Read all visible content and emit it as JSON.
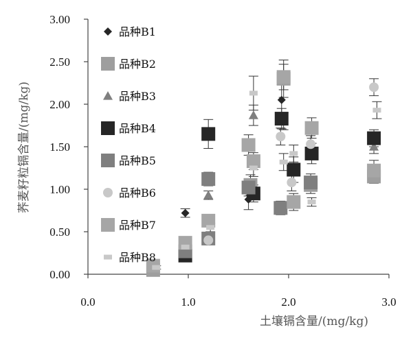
{
  "chart_data": {
    "type": "scatter",
    "xlabel": "土壤镉含量/(mg/kg)",
    "ylabel": "荞麦籽粒镉含量/(mg/kg)",
    "xlim": [
      0,
      3
    ],
    "ylim": [
      0,
      3
    ],
    "x_ticks": [
      "0.0",
      "1.0",
      "2.0",
      "3.0"
    ],
    "y_ticks": [
      "0.00",
      "0.50",
      "1.00",
      "1.50",
      "2.00",
      "2.50",
      "3.00"
    ],
    "grid": false,
    "legend_position": "top-left",
    "error_bars": true,
    "series": [
      {
        "name": "品种B1",
        "marker": "diamond",
        "color": "#262626",
        "points": [
          [
            0.97,
            0.72,
            0.05
          ],
          [
            1.6,
            0.88,
            0.12
          ],
          [
            1.93,
            2.05,
            0.18
          ]
        ]
      },
      {
        "name": "品种B2",
        "marker": "square",
        "color": "#9e9e9e",
        "points": [
          [
            0.65,
            0.05,
            0.03
          ],
          [
            1.62,
            1.05,
            0.12
          ],
          [
            1.95,
            2.3,
            0.22
          ],
          [
            2.22,
            1.05,
            0.1
          ],
          [
            2.85,
            1.15,
            0.08
          ]
        ]
      },
      {
        "name": "品种B3",
        "marker": "triangle",
        "color": "#7f7f7f",
        "points": [
          [
            1.2,
            0.93,
            0.05
          ],
          [
            1.65,
            1.87,
            0.12
          ],
          [
            1.95,
            1.8,
            0.1
          ],
          [
            2.85,
            1.5,
            0.08
          ]
        ]
      },
      {
        "name": "品种B4",
        "marker": "square",
        "color": "#262626",
        "points": [
          [
            0.97,
            0.22,
            0.03
          ],
          [
            1.2,
            1.65,
            0.17
          ],
          [
            1.65,
            0.95,
            0.1
          ],
          [
            1.93,
            1.83,
            0.12
          ],
          [
            2.05,
            1.23,
            0.15
          ],
          [
            2.23,
            1.42,
            0.12
          ],
          [
            2.85,
            1.6,
            0.1
          ]
        ]
      },
      {
        "name": "品种B5",
        "marker": "square",
        "color": "#7f7f7f",
        "points": [
          [
            0.97,
            0.27,
            0.03
          ],
          [
            1.2,
            0.42,
            0.07
          ],
          [
            1.2,
            1.12,
            0.08
          ],
          [
            1.6,
            1.02,
            0.1
          ],
          [
            1.92,
            0.78,
            0.08
          ],
          [
            2.22,
            1.08,
            0.1
          ]
        ]
      },
      {
        "name": "品种B6",
        "marker": "circle",
        "color": "#c8c8c8",
        "points": [
          [
            1.2,
            0.4,
            0.05
          ],
          [
            1.92,
            1.62,
            0.1
          ],
          [
            2.03,
            1.08,
            0.1
          ],
          [
            2.22,
            1.53,
            0.1
          ],
          [
            2.85,
            2.2,
            0.1
          ]
        ]
      },
      {
        "name": "品种B7",
        "marker": "square",
        "color": "#a6a6a6",
        "points": [
          [
            0.65,
            0.1,
            0.03
          ],
          [
            0.97,
            0.37,
            0.05
          ],
          [
            1.2,
            0.63,
            0.07
          ],
          [
            1.6,
            1.52,
            0.12
          ],
          [
            1.65,
            1.33,
            0.1
          ],
          [
            1.95,
            2.32,
            0.15
          ],
          [
            2.05,
            0.85,
            0.1
          ],
          [
            2.23,
            1.72,
            0.12
          ],
          [
            2.85,
            1.22,
            0.12
          ]
        ]
      },
      {
        "name": "品种B8",
        "marker": "small-square",
        "color": "#c8c8c8",
        "points": [
          [
            0.68,
            0.08,
            0.02
          ],
          [
            0.97,
            0.32,
            0.03
          ],
          [
            1.22,
            0.55,
            0.05
          ],
          [
            1.65,
            2.13,
            0.2
          ],
          [
            1.65,
            1.25,
            0.1
          ],
          [
            1.95,
            1.32,
            0.1
          ],
          [
            2.05,
            1.42,
            0.1
          ],
          [
            2.23,
            0.85,
            0.05
          ],
          [
            2.88,
            1.93,
            0.1
          ]
        ]
      }
    ]
  }
}
